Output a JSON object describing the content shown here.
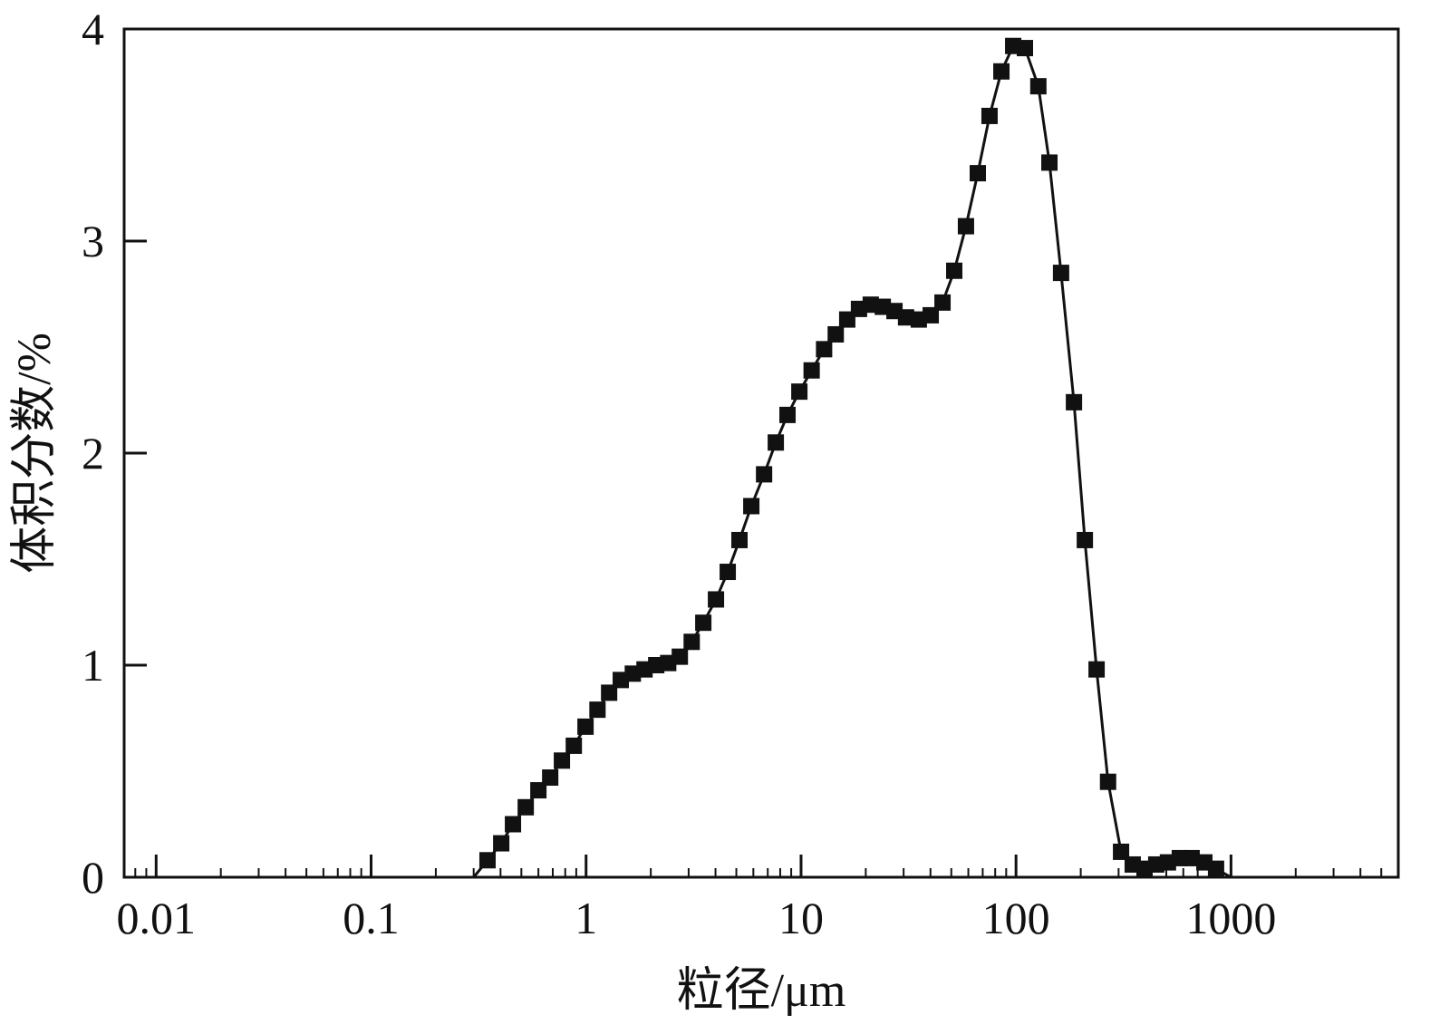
{
  "chart_data": {
    "type": "line",
    "x_label": "粒径/μm",
    "y_label": "体积分数/%",
    "x": [
      0.01,
      0.3,
      0.348,
      0.403,
      0.457,
      0.524,
      0.6,
      0.681,
      0.772,
      0.877,
      0.994,
      1.13,
      1.28,
      1.45,
      1.65,
      1.87,
      2.12,
      2.41,
      2.73,
      3.1,
      3.51,
      4.02,
      4.56,
      5.17,
      5.87,
      6.73,
      7.63,
      8.65,
      9.82,
      11.2,
      12.8,
      14.5,
      16.4,
      18.6,
      21.1,
      24.0,
      27.2,
      30.8,
      35.3,
      40.1,
      45.5,
      51.6,
      58.5,
      66.4,
      75.3,
      85.5,
      97.0,
      110,
      127,
      143,
      162,
      186,
      209,
      237,
      268,
      308,
      349,
      396,
      449,
      509,
      578,
      656,
      752,
      852,
      1000,
      3500
    ],
    "series": [
      {
        "color": "#111111",
        "values": [
          0,
          0,
          0.08,
          0.16,
          0.25,
          0.33,
          0.41,
          0.47,
          0.55,
          0.62,
          0.71,
          0.79,
          0.87,
          0.93,
          0.96,
          0.98,
          1.0,
          1.01,
          1.04,
          1.11,
          1.2,
          1.31,
          1.44,
          1.59,
          1.75,
          1.9,
          2.05,
          2.18,
          2.29,
          2.39,
          2.49,
          2.56,
          2.63,
          2.68,
          2.7,
          2.69,
          2.67,
          2.64,
          2.63,
          2.65,
          2.71,
          2.86,
          3.07,
          3.32,
          3.59,
          3.8,
          3.92,
          3.91,
          3.73,
          3.37,
          2.85,
          2.24,
          1.59,
          0.98,
          0.45,
          0.12,
          0.06,
          0.04,
          0.06,
          0.07,
          0.09,
          0.09,
          0.07,
          0.04,
          0,
          0
        ]
      }
    ],
    "x_log": true,
    "xlim": [
      0.0071,
      6000
    ],
    "xticks": [
      0.01,
      0.1,
      1,
      10,
      100,
      1000
    ],
    "ylim": [
      0,
      4
    ],
    "yticks": [
      0,
      1,
      2,
      3,
      4
    ]
  }
}
